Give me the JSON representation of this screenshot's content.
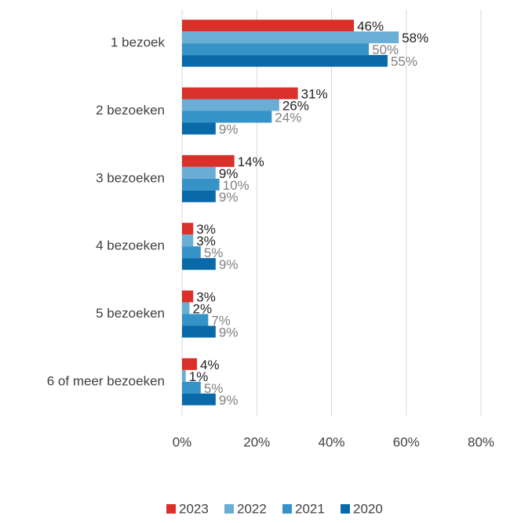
{
  "chart_data": {
    "type": "barh",
    "categories": [
      "1 bezoek",
      "2 bezoeken",
      "3 bezoeken",
      "4 bezoeken",
      "5 bezoeken",
      "6 of meer bezoeken"
    ],
    "series": [
      {
        "name": "2023",
        "color": "#d9302a",
        "label_color": "#222222",
        "values": [
          46,
          31,
          14,
          3,
          3,
          4
        ],
        "value_labels": [
          "46%",
          "31%",
          "14%",
          "3%",
          "3%",
          "4%"
        ]
      },
      {
        "name": "2022",
        "color": "#6aaed6",
        "label_color": "#222222",
        "values": [
          58,
          26,
          9,
          3,
          2,
          1
        ],
        "value_labels": [
          "58%",
          "26%",
          "9%",
          "3%",
          "2%",
          "1%"
        ]
      },
      {
        "name": "2021",
        "color": "#3593c7",
        "label_color": "#808080",
        "values": [
          50,
          24,
          10,
          5,
          7,
          5
        ],
        "value_labels": [
          "50%",
          "24%",
          "10%",
          "5%",
          "7%",
          "5%"
        ]
      },
      {
        "name": "2020",
        "color": "#0a6aa9",
        "label_color": "#808080",
        "values": [
          55,
          9,
          9,
          9,
          9,
          9
        ],
        "value_labels": [
          "55%",
          "9%",
          "9%",
          "9%",
          "9%",
          "9%"
        ]
      }
    ],
    "xlim": [
      0,
      80
    ],
    "xticks": [
      {
        "value": 0,
        "label": "0%"
      },
      {
        "value": 20,
        "label": "20%"
      },
      {
        "value": 40,
        "label": "40%"
      },
      {
        "value": 60,
        "label": "60%"
      },
      {
        "value": 80,
        "label": "80%"
      }
    ],
    "grid": true,
    "legend": "bottom"
  }
}
